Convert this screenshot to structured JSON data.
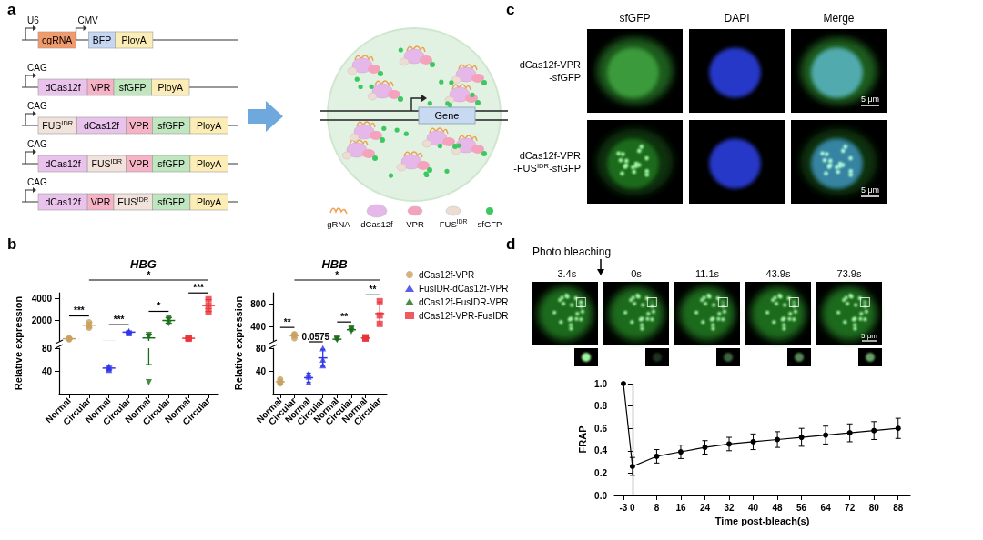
{
  "panel_labels": [
    "a",
    "b",
    "c",
    "d"
  ],
  "panel_a": {
    "constructs": [
      [
        {
          "promoter": "U6"
        },
        {
          "text": "cgRNA",
          "color": "#f39a6b"
        },
        {
          "promoter": "CMV"
        },
        {
          "text": "BFP",
          "color": "#c5d7f2"
        },
        {
          "text": "PloyA",
          "color": "#fbedb5"
        }
      ],
      [
        {
          "promoter": "CAG"
        },
        {
          "text": "dCas12f",
          "color": "#eac3ec"
        },
        {
          "text": "VPR",
          "color": "#f6b3c6"
        },
        {
          "text": "sfGFP",
          "color": "#bfe6bf"
        },
        {
          "text": "PloyA",
          "color": "#fbedb5"
        }
      ],
      [
        {
          "promoter": "CAG"
        },
        {
          "text": "FUS",
          "sup": "IDR",
          "color": "#f1e2dc"
        },
        {
          "text": "dCas12f",
          "color": "#eac3ec"
        },
        {
          "text": "VPR",
          "color": "#f6b3c6"
        },
        {
          "text": "sfGFP",
          "color": "#bfe6bf"
        },
        {
          "text": "PloyA",
          "color": "#fbedb5"
        }
      ],
      [
        {
          "promoter": "CAG"
        },
        {
          "text": "dCas12f",
          "color": "#eac3ec"
        },
        {
          "text": "FUS",
          "sup": "IDR",
          "color": "#f1e2dc"
        },
        {
          "text": "VPR",
          "color": "#f6b3c6"
        },
        {
          "text": "sfGFP",
          "color": "#bfe6bf"
        },
        {
          "text": "PloyA",
          "color": "#fbedb5"
        }
      ],
      [
        {
          "promoter": "CAG"
        },
        {
          "text": "dCas12f",
          "color": "#eac3ec"
        },
        {
          "text": "VPR",
          "color": "#f6b3c6"
        },
        {
          "text": "FUS",
          "sup": "IDR",
          "color": "#f1e2dc"
        },
        {
          "text": "sfGFP",
          "color": "#bfe6bf"
        },
        {
          "text": "PloyA",
          "color": "#fbedb5"
        }
      ]
    ],
    "cartoon": {
      "gene": "Gene",
      "legend": [
        {
          "text": "gRNA",
          "color": "#f0a050"
        },
        {
          "text": "dCas12f",
          "color": "#e6b8ea"
        },
        {
          "text": "VPR",
          "color": "#f5a3bc"
        },
        {
          "text": "FUS",
          "sup": "IDR",
          "color": "#eddcd2"
        },
        {
          "text": "sfGFP",
          "color": "#3cc860"
        }
      ]
    }
  },
  "chart_data": [
    {
      "type": "scatter",
      "title": "HBG",
      "y_label": "Relative expression",
      "categories": [
        "Normal",
        "Circular",
        "Normal",
        "Circular",
        "Normal",
        "Circular",
        "Normal",
        "Circular"
      ],
      "ylim": [
        0,
        4500
      ],
      "y_break": [
        80,
        100
      ],
      "yticks": [
        40,
        80,
        2000,
        4000
      ],
      "grid": false,
      "series": [
        {
          "name": "dCas12f-VPR",
          "color": "#c8a060",
          "marker": "circle",
          "values": [
            300,
            1533,
            null,
            null,
            null,
            null,
            null,
            null
          ],
          "errors": [
            44,
            252,
            null,
            null,
            null,
            null,
            null,
            null
          ],
          "points": [
            [
              250,
              320,
              330
            ],
            [
              1300,
              1500,
              1800
            ],
            null,
            null,
            null,
            null,
            null,
            null
          ]
        },
        {
          "name": "FusIDR-dCas12f-VPR",
          "color": "#2f35e8",
          "marker": "triangle",
          "values": [
            null,
            null,
            45,
            900,
            null,
            null,
            null,
            null
          ],
          "errors": [
            null,
            null,
            3,
            100,
            null,
            null,
            null,
            null
          ],
          "points": [
            null,
            null,
            [
              42,
              45,
              48
            ],
            [
              800,
              900,
              1000
            ],
            null,
            null,
            null,
            null
          ]
        },
        {
          "name": "dCas12f-FusIDR-VPR",
          "color": "#1a6e1a",
          "marker": "triangle-down",
          "values": [
            null,
            null,
            null,
            null,
            373,
            1967,
            null,
            null
          ],
          "errors": [
            null,
            null,
            null,
            null,
            322,
            252,
            null,
            null
          ],
          "points": [
            null,
            null,
            null,
            null,
            [
              650,
              450,
              20
            ],
            [
              1700,
              2000,
              2200
            ],
            null,
            null
          ]
        },
        {
          "name": "dCas12f-VPR-FusIDR",
          "color": "#e8333a",
          "marker": "square",
          "values": [
            null,
            null,
            null,
            null,
            null,
            null,
            343,
            3333
          ],
          "errors": [
            null,
            null,
            null,
            null,
            null,
            null,
            40,
            551
          ],
          "points": [
            null,
            null,
            null,
            null,
            null,
            null,
            [
              300,
              350,
              380
            ],
            [
              2800,
              3300,
              3900
            ]
          ]
        }
      ],
      "annotations": [
        {
          "text": "***",
          "between": [
            0,
            1
          ]
        },
        {
          "text": "***",
          "between": [
            2,
            3
          ]
        },
        {
          "text": "*",
          "between": [
            4,
            5
          ]
        },
        {
          "text": "***",
          "between": [
            6,
            7
          ]
        },
        {
          "text": "*",
          "between": [
            1,
            7
          ]
        }
      ]
    },
    {
      "type": "scatter",
      "title": "HBB",
      "y_label": "Relative expression",
      "categories": [
        "Normal",
        "Circular",
        "Normal",
        "Circular",
        "Normal",
        "Circular",
        "Normal",
        "Circular"
      ],
      "ylim": [
        0,
        1000
      ],
      "y_break": [
        80,
        150
      ],
      "yticks": [
        40,
        80,
        400,
        800
      ],
      "grid": false,
      "legend": "top right",
      "series": [
        {
          "name": "dCas12f-VPR",
          "color": "#c8a060",
          "marker": "circle",
          "values": [
            21,
            240,
            null,
            null,
            null,
            null,
            null,
            null
          ],
          "errors": [
            4,
            36,
            null,
            null,
            null,
            null,
            null,
            null
          ],
          "points": [
            [
              18,
              20,
              25
            ],
            [
              200,
              250,
              270
            ],
            null,
            null,
            null,
            null,
            null,
            null
          ]
        },
        {
          "name": "FusIDR-dCas12f-VPR",
          "color": "#2f35e8",
          "marker": "triangle",
          "values": [
            null,
            null,
            28,
            63,
            null,
            null,
            null,
            null
          ],
          "errors": [
            null,
            null,
            8,
            15,
            null,
            null,
            null,
            null
          ],
          "points": [
            null,
            null,
            [
              20,
              30,
              35
            ],
            [
              50,
              60,
              80
            ],
            null,
            null,
            null,
            null
          ]
        },
        {
          "name": "dCas12f-FusIDR-VPR",
          "color": "#1a6e1a",
          "marker": "triangle-down",
          "values": [
            null,
            null,
            null,
            null,
            180,
            347,
            null,
            null
          ],
          "errors": [
            null,
            null,
            null,
            null,
            10,
            25,
            null,
            null
          ],
          "points": [
            null,
            null,
            null,
            null,
            [
              170,
              180,
              190
            ],
            [
              320,
              350,
              370
            ],
            null,
            null
          ]
        },
        {
          "name": "dCas12f-VPR-FusIDR",
          "color": "#e8333a",
          "marker": "square",
          "values": [
            null,
            null,
            null,
            null,
            null,
            null,
            202,
            633
          ],
          "errors": [
            null,
            null,
            null,
            null,
            null,
            null,
            13,
            202
          ],
          "points": [
            null,
            null,
            null,
            null,
            null,
            null,
            [
              190,
              200,
              215
            ],
            [
              450,
              600,
              850
            ]
          ]
        }
      ],
      "annotations": [
        {
          "text": "**",
          "between": [
            0,
            1
          ]
        },
        {
          "text": "0.0575",
          "between": [
            2,
            3
          ]
        },
        {
          "text": "**",
          "between": [
            4,
            5
          ]
        },
        {
          "text": "**",
          "between": [
            6,
            7
          ]
        },
        {
          "text": "*",
          "between": [
            1,
            7
          ]
        }
      ]
    },
    {
      "type": "line",
      "x_label": "Time post-bleach(s)",
      "y_label": "FRAP",
      "color": "#000000",
      "marker": "circle",
      "grid": false,
      "x": [
        -3,
        0,
        8,
        16,
        24,
        32,
        40,
        48,
        56,
        64,
        72,
        80,
        88
      ],
      "values": [
        1.0,
        0.26,
        0.35,
        0.39,
        0.43,
        0.46,
        0.48,
        0.5,
        0.52,
        0.54,
        0.56,
        0.58,
        0.6
      ],
      "errors": [
        null,
        0.08,
        0.06,
        0.06,
        0.06,
        0.06,
        0.07,
        0.07,
        0.08,
        0.08,
        0.08,
        0.08,
        0.09
      ],
      "xlim": [
        -6,
        92
      ],
      "xticks": [
        -3,
        0,
        8,
        16,
        24,
        32,
        40,
        48,
        56,
        64,
        72,
        80,
        88
      ],
      "ylim": [
        0,
        1
      ],
      "yticks": [
        {
          "value": 0,
          "label": "0.0"
        },
        0.2,
        0.4,
        0.6,
        0.8,
        {
          "value": 1,
          "label": "1.0"
        }
      ]
    }
  ],
  "panel_c": {
    "columns": [
      "sfGFP",
      "DAPI",
      "Merge"
    ],
    "rows": [
      [
        [
          {
            "text": "dCas12f-VPR"
          }
        ],
        [
          {
            "text": "-sfGFP"
          }
        ]
      ],
      [
        [
          {
            "text": "dCas12f-VPR"
          }
        ],
        [
          {
            "text": "-FUS"
          },
          {
            "sup": "IDR"
          },
          {
            "text": "-sfGFP"
          }
        ]
      ]
    ],
    "scale_bar": "5 μm"
  },
  "panel_d": {
    "annotation": "Photo bleaching",
    "times": [
      "-3.4s",
      "0s",
      "11.1s",
      "43.9s",
      "73.9s"
    ],
    "scale_bar": "5 μm"
  }
}
